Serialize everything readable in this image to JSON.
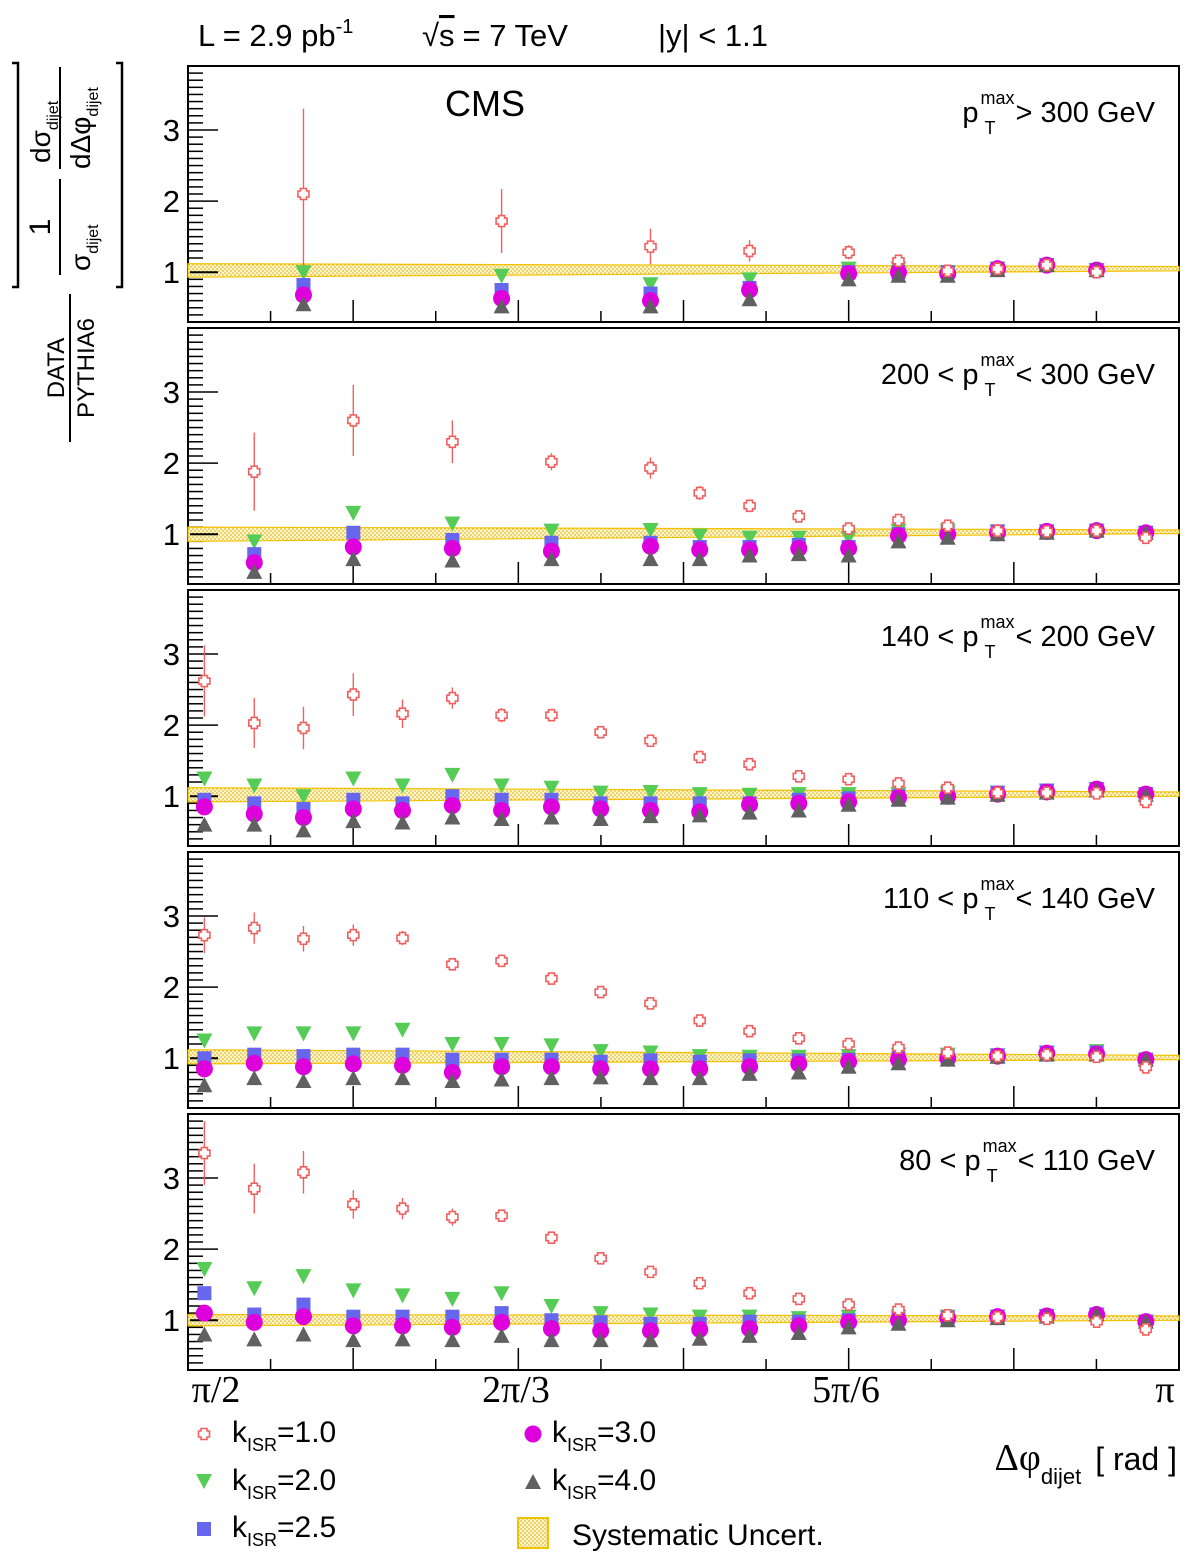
{
  "header": {
    "lumi_prefix": "L = 2.9 pb",
    "lumi_exp": "-1",
    "sqrt_symbol": "√",
    "energy_var": "s",
    "energy_value": "= 7 TeV",
    "rapidity": "|y| < 1.1"
  },
  "experiment_label": "CMS",
  "ylabel": {
    "d_sigma": "dσ",
    "d_dphi": "dΔφ",
    "one": "1",
    "sigma": "σ",
    "sub": "dijet",
    "ratio_num": "DATA",
    "ratio_den": "PYTHIA6"
  },
  "xlabel": {
    "main": "Δφ",
    "sub": "dijet",
    "unit": "[ rad ]"
  },
  "x_ticks": [
    "π/2",
    "2π/3",
    "5π/6",
    "π"
  ],
  "y_tick_labels": [
    "1",
    "2",
    "3"
  ],
  "legend": {
    "k1": "=1.0",
    "k2": "=2.0",
    "k25": "=2.5",
    "k3": "=3.0",
    "k4": "=4.0",
    "k_letter": "k",
    "k_sub": "ISR",
    "syst": "Systematic Uncert."
  },
  "colors": {
    "k1.0": "#f06060",
    "k2.0": "#55cc55",
    "k2.5": "#6666ee",
    "k3.0": "#dd00dd",
    "k4.0": "#606060",
    "systematic": "#f2c200"
  },
  "chart_data": {
    "type": "scatter",
    "x": [
      1.597,
      1.676,
      1.754,
      1.833,
      1.911,
      1.99,
      2.068,
      2.147,
      2.225,
      2.304,
      2.382,
      2.461,
      2.539,
      2.618,
      2.697,
      2.775,
      2.854,
      2.932,
      3.011,
      3.089
    ],
    "xlim": [
      1.571,
      3.1416
    ],
    "ylim": [
      0.3,
      3.9
    ],
    "grid": false,
    "legend_placement": "bottom",
    "panels": [
      {
        "label_lhs": "",
        "label_rhs": "> 300 GeV",
        "systematic": {
          "start": [
            0.93,
            1.12
          ],
          "end": [
            1.02,
            1.08
          ]
        },
        "series": [
          {
            "name": "k=1.0",
            "values": [
              null,
              null,
              2.1,
              null,
              null,
              null,
              1.72,
              null,
              null,
              1.36,
              null,
              1.3,
              null,
              1.28,
              1.16,
              1.02,
              1.05,
              1.1,
              1.0,
              null
            ],
            "err": [
              0,
              0,
              1.2,
              0,
              0,
              0,
              0.45,
              0,
              0,
              0.25,
              0,
              0.15,
              0,
              0.1,
              0.08,
              0.06,
              0.05,
              0.05,
              0.05,
              0
            ]
          },
          {
            "name": "k=2.0",
            "values": [
              null,
              null,
              1.0,
              null,
              null,
              null,
              0.95,
              null,
              null,
              0.83,
              null,
              0.9,
              null,
              1.05,
              1.05,
              1.0,
              1.05,
              1.1,
              1.03,
              null
            ]
          },
          {
            "name": "k=2.5",
            "values": [
              null,
              null,
              0.82,
              null,
              null,
              null,
              0.75,
              null,
              null,
              0.7,
              null,
              0.78,
              null,
              1.0,
              1.0,
              1.0,
              1.05,
              1.1,
              1.03,
              null
            ]
          },
          {
            "name": "k=3.0",
            "values": [
              null,
              null,
              0.68,
              null,
              null,
              null,
              0.63,
              null,
              null,
              0.6,
              null,
              0.75,
              null,
              0.98,
              1.0,
              0.98,
              1.05,
              1.1,
              1.03,
              null
            ]
          },
          {
            "name": "k=4.0",
            "values": [
              null,
              null,
              0.55,
              null,
              null,
              null,
              0.52,
              null,
              null,
              0.52,
              null,
              0.62,
              null,
              0.9,
              0.95,
              0.95,
              1.03,
              1.1,
              1.03,
              null
            ]
          }
        ]
      },
      {
        "label_lhs": "200 <",
        "label_rhs": "< 300 GeV",
        "systematic": {
          "start": [
            0.9,
            1.1
          ],
          "end": [
            1.01,
            1.06
          ]
        },
        "series": [
          {
            "name": "k=1.0",
            "values": [
              null,
              1.88,
              null,
              2.6,
              null,
              2.3,
              null,
              2.02,
              null,
              1.93,
              1.58,
              1.4,
              1.25,
              1.08,
              1.2,
              1.12,
              1.05,
              1.04,
              1.05,
              0.95
            ],
            "err": [
              0,
              0.55,
              0,
              0.5,
              0,
              0.3,
              0,
              0.12,
              0,
              0.15,
              0.1,
              0.08,
              0.08,
              0.05,
              0.05,
              0.05,
              0.04,
              0.04,
              0.04,
              0.05
            ]
          },
          {
            "name": "k=2.0",
            "values": [
              null,
              0.9,
              null,
              1.3,
              null,
              1.15,
              null,
              1.05,
              null,
              1.06,
              0.98,
              0.95,
              0.95,
              0.95,
              1.05,
              1.05,
              1.04,
              1.04,
              1.05,
              1.02
            ]
          },
          {
            "name": "k=2.5",
            "values": [
              null,
              0.72,
              null,
              1.02,
              null,
              0.92,
              null,
              0.88,
              null,
              0.88,
              0.82,
              0.82,
              0.85,
              0.82,
              1.0,
              1.02,
              1.04,
              1.04,
              1.05,
              1.02
            ]
          },
          {
            "name": "k=3.0",
            "values": [
              null,
              0.6,
              null,
              0.82,
              null,
              0.8,
              null,
              0.76,
              null,
              0.83,
              0.78,
              0.78,
              0.8,
              0.8,
              0.98,
              1.0,
              1.02,
              1.04,
              1.05,
              1.02
            ]
          },
          {
            "name": "k=4.0",
            "values": [
              null,
              0.47,
              null,
              0.65,
              null,
              0.63,
              null,
              0.65,
              null,
              0.65,
              0.65,
              0.7,
              0.72,
              0.7,
              0.9,
              0.95,
              1.0,
              1.02,
              1.05,
              1.02
            ]
          }
        ]
      },
      {
        "label_lhs": "140 <",
        "label_rhs": "< 200 GeV",
        "systematic": {
          "start": [
            0.92,
            1.12
          ],
          "end": [
            1.0,
            1.06
          ]
        },
        "series": [
          {
            "name": "k=1.0",
            "values": [
              2.62,
              2.03,
              1.96,
              2.43,
              2.16,
              2.38,
              2.14,
              2.14,
              1.9,
              1.78,
              1.55,
              1.45,
              1.28,
              1.24,
              1.18,
              1.12,
              1.05,
              1.05,
              1.04,
              0.92
            ],
            "err": [
              0.5,
              0.35,
              0.3,
              0.3,
              0.2,
              0.15,
              0.1,
              0.08,
              0.08,
              0.08,
              0.08,
              0.07,
              0.07,
              0.06,
              0.05,
              0.05,
              0.04,
              0.04,
              0.04,
              0.05
            ]
          },
          {
            "name": "k=2.0",
            "values": [
              1.25,
              1.15,
              1.0,
              1.25,
              1.15,
              1.3,
              1.15,
              1.12,
              1.05,
              1.06,
              1.03,
              1.02,
              1.03,
              1.03,
              1.03,
              1.05,
              1.05,
              1.08,
              1.1,
              1.03
            ]
          },
          {
            "name": "k=2.5",
            "values": [
              0.95,
              0.9,
              0.82,
              0.95,
              0.9,
              1.0,
              0.95,
              0.95,
              0.9,
              0.9,
              0.9,
              0.9,
              0.95,
              0.97,
              1.0,
              1.02,
              1.05,
              1.08,
              1.1,
              1.03
            ]
          },
          {
            "name": "k=3.0",
            "values": [
              0.85,
              0.75,
              0.7,
              0.82,
              0.8,
              0.87,
              0.8,
              0.85,
              0.82,
              0.8,
              0.78,
              0.88,
              0.9,
              0.92,
              0.98,
              1.0,
              1.03,
              1.06,
              1.1,
              1.03
            ]
          },
          {
            "name": "k=4.0",
            "values": [
              0.6,
              0.6,
              0.52,
              0.65,
              0.63,
              0.7,
              0.68,
              0.7,
              0.68,
              0.72,
              0.73,
              0.77,
              0.8,
              0.88,
              0.95,
              0.98,
              1.02,
              1.05,
              1.08,
              1.02
            ]
          }
        ]
      },
      {
        "label_lhs": "110 <",
        "label_rhs": "< 140 GeV",
        "systematic": {
          "start": [
            0.92,
            1.12
          ],
          "end": [
            0.98,
            1.04
          ]
        },
        "series": [
          {
            "name": "k=1.0",
            "values": [
              2.73,
              2.83,
              2.68,
              2.73,
              2.69,
              2.32,
              2.37,
              2.12,
              1.93,
              1.77,
              1.53,
              1.38,
              1.28,
              1.2,
              1.15,
              1.08,
              1.03,
              1.05,
              1.02,
              0.87
            ],
            "err": [
              0.25,
              0.22,
              0.18,
              0.15,
              0.1,
              0.08,
              0.06,
              0.06,
              0.06,
              0.05,
              0.05,
              0.05,
              0.05,
              0.05,
              0.04,
              0.04,
              0.04,
              0.04,
              0.05,
              0.05
            ]
          },
          {
            "name": "k=2.0",
            "values": [
              1.25,
              1.35,
              1.35,
              1.35,
              1.4,
              1.2,
              1.2,
              1.18,
              1.1,
              1.08,
              1.03,
              1.02,
              1.02,
              1.03,
              1.05,
              1.05,
              1.04,
              1.08,
              1.1,
              0.98
            ]
          },
          {
            "name": "k=2.5",
            "values": [
              1.0,
              1.05,
              1.03,
              1.05,
              1.05,
              0.98,
              0.98,
              0.98,
              0.95,
              0.97,
              0.95,
              0.97,
              0.97,
              0.98,
              1.0,
              1.02,
              1.04,
              1.08,
              1.08,
              0.98
            ]
          },
          {
            "name": "k=3.0",
            "values": [
              0.85,
              0.93,
              0.88,
              0.92,
              0.9,
              0.8,
              0.88,
              0.88,
              0.85,
              0.85,
              0.85,
              0.88,
              0.92,
              0.95,
              0.98,
              1.0,
              1.03,
              1.07,
              1.06,
              0.98
            ]
          },
          {
            "name": "k=4.0",
            "values": [
              0.62,
              0.72,
              0.68,
              0.72,
              0.72,
              0.68,
              0.7,
              0.72,
              0.73,
              0.72,
              0.72,
              0.78,
              0.8,
              0.88,
              0.93,
              0.98,
              1.02,
              1.05,
              1.05,
              0.98
            ]
          }
        ]
      },
      {
        "label_lhs": "80 <",
        "label_rhs": "< 110 GeV",
        "systematic": {
          "start": [
            0.92,
            1.08
          ],
          "end": [
            1.0,
            1.06
          ]
        },
        "series": [
          {
            "name": "k=1.0",
            "values": [
              3.35,
              2.85,
              3.08,
              2.63,
              2.57,
              2.45,
              2.47,
              2.16,
              1.87,
              1.68,
              1.52,
              1.38,
              1.3,
              1.22,
              1.15,
              1.07,
              1.04,
              1.02,
              0.98,
              0.87
            ],
            "err": [
              0.45,
              0.35,
              0.3,
              0.2,
              0.15,
              0.12,
              0.08,
              0.07,
              0.06,
              0.06,
              0.05,
              0.05,
              0.05,
              0.05,
              0.05,
              0.04,
              0.04,
              0.04,
              0.04,
              0.05
            ]
          },
          {
            "name": "k=2.0",
            "values": [
              1.72,
              1.45,
              1.62,
              1.42,
              1.35,
              1.3,
              1.38,
              1.2,
              1.1,
              1.08,
              1.05,
              1.05,
              1.03,
              1.05,
              1.05,
              1.05,
              1.05,
              1.06,
              1.08,
              0.98
            ]
          },
          {
            "name": "k=2.5",
            "values": [
              1.38,
              1.08,
              1.22,
              1.05,
              1.05,
              1.05,
              1.1,
              1.0,
              0.97,
              0.95,
              0.95,
              0.98,
              0.98,
              1.0,
              1.02,
              1.04,
              1.05,
              1.06,
              1.08,
              0.98
            ]
          },
          {
            "name": "k=3.0",
            "values": [
              1.1,
              0.97,
              1.05,
              0.92,
              0.92,
              0.9,
              0.97,
              0.88,
              0.85,
              0.85,
              0.87,
              0.88,
              0.92,
              0.97,
              1.0,
              1.03,
              1.05,
              1.06,
              1.08,
              0.98
            ]
          },
          {
            "name": "k=4.0",
            "values": [
              0.8,
              0.73,
              0.8,
              0.72,
              0.73,
              0.72,
              0.78,
              0.72,
              0.72,
              0.72,
              0.74,
              0.78,
              0.82,
              0.9,
              0.95,
              1.0,
              1.03,
              1.05,
              1.08,
              0.98
            ]
          }
        ]
      }
    ]
  }
}
